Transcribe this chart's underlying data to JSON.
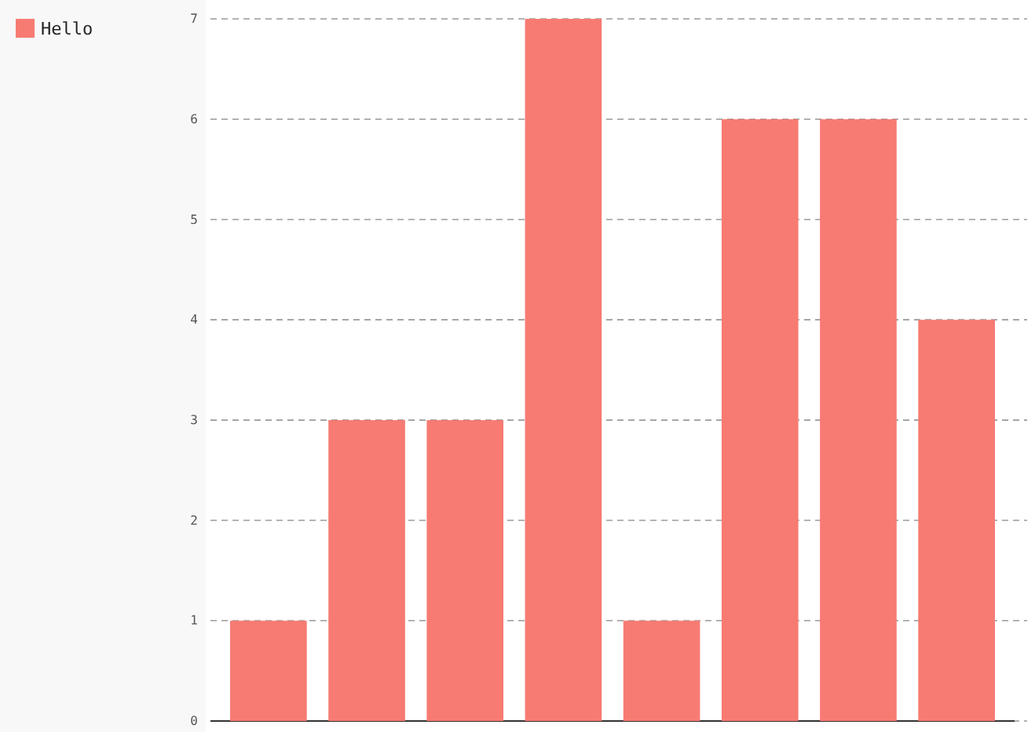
{
  "chart_data": {
    "type": "bar",
    "categories": [
      null,
      null,
      null,
      null,
      null,
      null,
      null,
      null
    ],
    "series": [
      {
        "name": "Hello",
        "color": "#f77b72",
        "values": [
          1,
          3,
          3,
          7,
          1,
          6,
          6,
          4
        ]
      }
    ],
    "ylim": [
      0,
      7
    ],
    "yticks": [
      0,
      1,
      2,
      3,
      4,
      5,
      6,
      7
    ],
    "grid": "y",
    "legend": "top left"
  }
}
